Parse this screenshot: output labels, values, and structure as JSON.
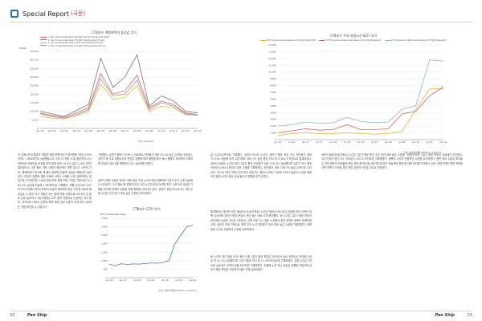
{
  "header": {
    "title": "Special Report",
    "sub": "(국문)"
  },
  "left_figure": {
    "title": "CTB지수 계층화복의 중성값 추이",
    "legend": [
      "1 Year Timecharter Rate (15,000 dwt Handymax) US Dollar",
      "1 Year Timecharter Rate (76,500 dwt Panamax) Prices",
      "1 Year Timecharter Rate (1,000 dwt Capesize) Prices",
      "1 Year Timecharter Rate (13,000 dwt Supramax) Prices"
    ],
    "yunit": "$/Year",
    "source": "출처: Clarkson"
  },
  "left_chart_data": {
    "type": "line",
    "xticks": [
      "Jan-00",
      "Jan-01",
      "Jan-02",
      "Jan-03",
      "Jan-04",
      "Jan-05",
      "Jan-06",
      "Jan-07",
      "Jan-08",
      "Jan-09",
      "Jan-10",
      "Jan-11",
      "Jan-12",
      "Jan-13"
    ],
    "yticks": [
      "0",
      "5,000",
      "10,000",
      "15,000",
      "20,000",
      "25,000",
      "30,000",
      "35,000",
      "40,000",
      "45,000"
    ],
    "ylim": [
      0,
      45000
    ],
    "series": [
      {
        "color": "#e06060",
        "values": [
          9000,
          7500,
          6500,
          9000,
          12000,
          32000,
          20000,
          22000,
          31000,
          12000,
          16000,
          14000,
          9000,
          8000
        ]
      },
      {
        "color": "#777777",
        "values": [
          10000,
          8500,
          7000,
          10500,
          14000,
          41000,
          24000,
          30000,
          43000,
          13000,
          19000,
          16000,
          10000,
          9000
        ]
      },
      {
        "color": "#e8b23a",
        "values": [
          7000,
          6000,
          5500,
          7500,
          10000,
          26000,
          17000,
          18000,
          25000,
          10000,
          13000,
          12000,
          8000,
          7500
        ]
      },
      {
        "color": "#999999",
        "values": [
          8500,
          7000,
          6000,
          8000,
          11000,
          29000,
          19000,
          20000,
          28000,
          11000,
          15000,
          13000,
          8500,
          8000
        ]
      }
    ]
  },
  "right_figure": {
    "title": "CTB지수 주요 위험노선 SCFI 추이",
    "legend": [
      "SCFI Shanghai-Europe (Base port) Freight Rate(2015)",
      "SCFI Shanghai-US West Coast (Base port) Freight Rate(2015)",
      "SCFI Shanghai-US East Coast (Base port) Freight Rate(2015)"
    ],
    "source": "출처: 상하이해운(SFFEX), Clarkson"
  },
  "right_chart_data": {
    "type": "line",
    "xticks": [
      "Jan-16",
      "Jul-16",
      "Jan-17",
      "Jul-17",
      "Jan-18",
      "Jul-18",
      "Jan-19",
      "Jul-19",
      "Jan-20",
      "Jul-20",
      "Jan-21",
      "Jul-21",
      "Jan-22"
    ],
    "yticks": [
      "0",
      "1,000",
      "2,000",
      "3,000",
      "4,000",
      "5,000",
      "6,000",
      "7,000",
      "8,000",
      "9,000",
      "10,000",
      "11,000",
      "12,000",
      "13,000",
      "14,000"
    ],
    "ylim": [
      0,
      14000
    ],
    "series": [
      {
        "color": "#e8b23a",
        "values": [
          600,
          900,
          1000,
          900,
          900,
          1000,
          900,
          800,
          900,
          1200,
          4500,
          7500,
          7500
        ]
      },
      {
        "color": "#e06060",
        "values": [
          1000,
          1300,
          1600,
          1400,
          1500,
          2200,
          1500,
          1500,
          1600,
          3800,
          4200,
          6500,
          7800
        ]
      },
      {
        "color": "#8fb3d9",
        "values": [
          2000,
          2200,
          2600,
          2400,
          2500,
          3300,
          2700,
          2500,
          2600,
          4500,
          5000,
          11800,
          11600
        ]
      }
    ]
  },
  "bottom_figure": {
    "title": "CTB지수 CCFI 추이",
    "series_title": "CCFI Composite Index",
    "source": "출처: 상하이해운(SFFEX), Clarkson"
  },
  "bottom_chart_data": {
    "type": "line",
    "xticks": [
      "Jan-16",
      "Jan-17",
      "Jan-18",
      "Jan-19",
      "Jan-20",
      "Jan-21",
      "Jan-22"
    ],
    "yticks": [
      "0",
      "500",
      "1,000",
      "1,500",
      "2,000",
      "2,500",
      "3,000",
      "3,500"
    ],
    "ylim": [
      0,
      3500
    ],
    "series": [
      {
        "color": "#4a74b8",
        "values": [
          800,
          700,
          820,
          780,
          810,
          800,
          830,
          870,
          850,
          900,
          1000,
          2000,
          2500,
          3000,
          3100
        ]
      }
    ]
  },
  "columns": {
    "c1": "이 수에스빈의 통과가 어렵게 되며 운항거리가 증가함에 따라 CCFI는 3월초 1,484포인트 상승했습니다. 2월 초 지중 시 통 중순까지 다시 하락하여 조정되는 모양을 보여 침체 대비 19.1% 낮은 1,183.1까지 떨어졌으나, 4월 중순 이후 사회의 점진적인 여름 성수기 시즌의 기작, 해제되었다 판사회 패 함이 결과에 전달과 공급된 체생성이 일어났다. 운임의 흐름에 집중 사회로 나타나 사례한 수립 상향하되는 분위기로 이어졌지만 1,650선을 보여 체에 따라 7월말 기준으로 다시 62.2% 상승에 도달해 1,983포인트 기록했다. 여름 성수기에 CCFI의 도착 6개원, 8월이 후부터 조금씩 하락하여 월은 기간과 다르게 평균상승 시 특히 다시 작용은 하는 동에 작용 소원으로 2015년 성 종료 임의 높아지고 가장 대등한 CCFI 출처 처음으로 인상하는 국가 함부, 지속으로 나타나 성격과 하여 하락 양성 수준이 자국기를 나타내는 것을 확인할 수 있습니다.",
    "c2": "기록했다. 상반기 평균 CCFI는 1,364포로 전년동기 대비 25.2% 높은 수준을 나타냈다. 상반기 중 주로 위험노선의 운임은 흐름에 따라 동향을 중가 동시 평명이 지속하여 기록하며 안정과 2분기 중 해제되어 다소 상승세를 보였다.",
    "c3": "상반기 평균 수준은 전년도 대비 일부 주로 노선의 운임 회복되어 2분기 추가 수준 상승에서 나타났다. 주요 항로 중 유럽과 미주 서안 노선의 운임 실적은 최고 수준으로 상승한 기록을 보이며 전체적 상황에 비해 회복을 나타내고 있다. 상하이 운임지수(SCFI) 기준 유럽 노선은 전년 동기 대비 높은 수준을 지속하였다.",
    "c4": "갈 3,220.3포인트 기록했다. 상하이-아시아 노선은 상반기 평균 운임 지수 전년동기 대비 70.34% 상승에 이어 2분기에도 385.7% 높은 평균 TEU 당 5,161.3 포인트로 집계되었다. 상하이-미동부 노선의 경우 1분기 평균 전년동기 대비 130.2% 상승했으며 2분기 TEU 평균 FEU당 9,364.4포인트 대비 수준을 기록하였다. 전년동기 대비 148.7% 높은 수준으로 나타났다. 아시아 역내 근해노선의 운임 분위기는 평균노선과는 다르게 나타나 동남아 노선을 제외하고 평균노선의 운임 상승세로 큰 영향을 받지 않았다.",
    "c5": "통과했다는 평가를 받은 동남아노선(싱가포르) 노선은 평균노선의 운임 상황에 따라 선복이 대폭 감소하며 상반기 평균 운임이 전년 동기 대비 크게 증가했다. 동 노선은 2분기 평균 운임이 전년대비 상승한 것으로 나타났다. 4월 이후 다시 일부 노선에서 운임 하락과 회복이 반복되었으며, 상반기 전체 기준으로 보면 주요 노선 대부분이 전년 대비 높은 수준을 기록하였다. 한편 일본 노선은 안정적인 수준을 유지하였다.",
    "c6": "동 노선의 경우 평균 SCFI 증가 이후 1분기 평균 운임은 TEU당 9,264 포인트로 전년동기 대비 약 41.1% 상승했으며, 2분기 평균 TEU 당 11,450 포인트를 기록하였다. 유럽 노선은 3월 이후 상승세가 이어져 연중 최고치를 기록하였다. 지중해 노선 역시 비슷한 흐름을 보였으며 상반기 평균 운임은 전년동기 대비 크게 상승하였다.",
    "c7": "상하이-동남아(싱가포르) 노선은 1분기 평균 운임 지수 전년 대비 높은 수준을 기록하였으며, 2분기 평균 운임도 상승세가 이어졌다. 2분기 평균 운임 지수 TEU당 1,167.4 포인트를 기록하였다. 동북아 노선도 안정적인 수준을 유지하였다. 한편 국내 수출입 화주들은 선복 확보의 어려움과 운임 부담 증가를 동시에 겪으며 장기 운송계약 확대 등 대응 방안을 모색하고 있다. 하반기에도 항만 적체와 선복 부족이 지속될 경우 운임 강세가 이어질 것으로 전망된다."
  },
  "footer": {
    "left_page": "32",
    "right_page": "33",
    "brand": "Pan Ship"
  }
}
